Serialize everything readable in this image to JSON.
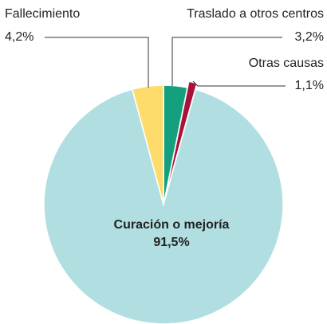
{
  "chart_data": {
    "type": "pie",
    "categories": [
      "Traslado a otros centros",
      "Otras causas",
      "Curación o mejoría",
      "Fallecimiento"
    ],
    "values": [
      3.2,
      1.1,
      91.5,
      4.2
    ],
    "value_labels": [
      "3,2%",
      "1,1%",
      "91,5%",
      "4,2%"
    ],
    "colors": [
      "#14a07e",
      "#a8123a",
      "#b1dfe1",
      "#fddc6c"
    ],
    "explode": [
      0,
      1,
      0,
      0
    ]
  }
}
